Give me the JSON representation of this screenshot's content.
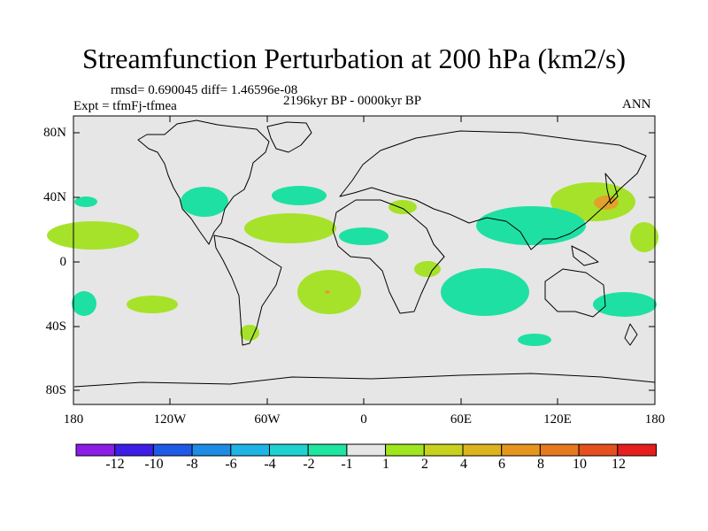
{
  "title": "Streamfunction Perturbation at 200 hPa (km2/s)",
  "stats_line": "rmsd= 0.690045 diff= 1.46596e-08",
  "period": "2196kyr BP - 0000kyr BP",
  "experiment": "Expt = tfmFj-tfmea",
  "season": "ANN",
  "lat_labels": [
    "80N",
    "40N",
    "0",
    "40S",
    "80S"
  ],
  "lon_labels": [
    "180",
    "120W",
    "60W",
    "0",
    "60E",
    "120E",
    "180"
  ],
  "colorbar": {
    "colors": [
      "#8a1ee6",
      "#3c1ee6",
      "#1e5ae6",
      "#1e8ce6",
      "#1eb4e6",
      "#1ed2d2",
      "#1ee6a0",
      "#e6e6e6",
      "#a0e61e",
      "#c8d21e",
      "#dcb41e",
      "#e6961e",
      "#e6781e",
      "#e6501e",
      "#e61e1e"
    ],
    "labels": [
      "-12",
      "-10",
      "-8",
      "-6",
      "-4",
      "-2",
      "-1",
      "1",
      "2",
      "4",
      "6",
      "8",
      "10",
      "12"
    ]
  },
  "colors": {
    "positive": "#a6e22a",
    "negative": "#1ee0a2",
    "center": "#e0a22a",
    "land": "#e6e6e6"
  }
}
